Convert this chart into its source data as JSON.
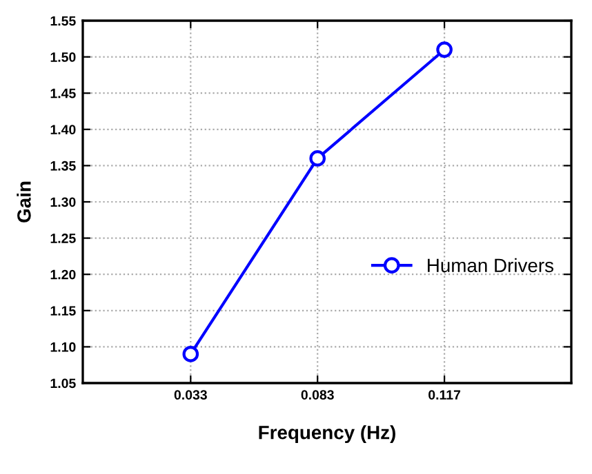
{
  "chart_data": {
    "type": "line",
    "xlabel": "Frequency (Hz)",
    "ylabel": "Gain",
    "categories": [
      "0.033",
      "0.083",
      "0.117"
    ],
    "series": [
      {
        "name": "Human Drivers",
        "color": "#0000ff",
        "values": [
          1.09,
          1.36,
          1.51
        ]
      }
    ],
    "ylim": [
      1.05,
      1.55
    ],
    "yticks": [
      {
        "value": 1.05,
        "label": "1.05"
      },
      {
        "value": 1.1,
        "label": "1.10"
      },
      {
        "value": 1.15,
        "label": "1.15"
      },
      {
        "value": 1.2,
        "label": "1.20"
      },
      {
        "value": 1.25,
        "label": "1.25"
      },
      {
        "value": 1.3,
        "label": "1.30"
      },
      {
        "value": 1.35,
        "label": "1.35"
      },
      {
        "value": 1.4,
        "label": "1.40"
      },
      {
        "value": 1.45,
        "label": "1.45"
      },
      {
        "value": 1.5,
        "label": "1.50"
      },
      {
        "value": 1.55,
        "label": "1.55"
      }
    ],
    "grid": true,
    "legend": "right",
    "marker": "circle",
    "line_style": "solid"
  }
}
